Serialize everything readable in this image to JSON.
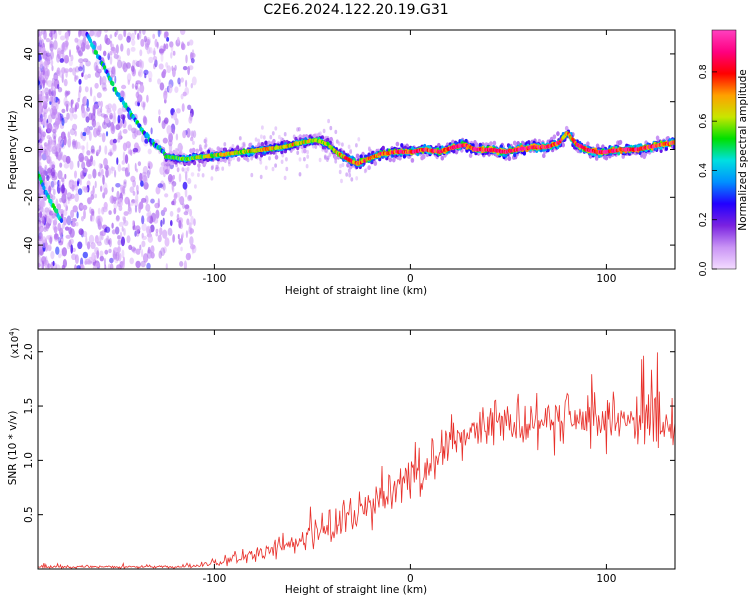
{
  "title": "C2E6.2024.122.20.19.G31",
  "colors": {
    "background": "#ffffff",
    "trace": "#e8302a",
    "frame": "#000000"
  },
  "chart_data": [
    {
      "type": "heatmap",
      "title": "C2E6.2024.122.20.19.G31",
      "xlabel": "Height of straight line (km)",
      "ylabel": "Frequency (Hz)",
      "xlim": [
        -190,
        135
      ],
      "ylim": [
        -50,
        50
      ],
      "x_ticks": [
        -100,
        0,
        100
      ],
      "y_ticks": [
        -40,
        -20,
        0,
        20,
        40
      ],
      "colorbar": {
        "label": "Normalized spectral amplitude",
        "range": [
          0.0,
          0.97
        ],
        "ticks": [
          "0.0",
          "0.2",
          "0.4",
          "0.6",
          "0.8"
        ],
        "colormap": [
          "#f4dcff",
          "#c994f5",
          "#7a22e0",
          "#2200ff",
          "#0090ff",
          "#00e0e0",
          "#00e000",
          "#c8e600",
          "#ffa000",
          "#ff0000",
          "#ff0080",
          "#ff40c0"
        ]
      },
      "ridge": {
        "x": [
          -125,
          -115,
          -105,
          -95,
          -85,
          -75,
          -65,
          -55,
          -48,
          -42,
          -38,
          -32,
          -27,
          -22,
          -15,
          -8,
          0,
          8,
          15,
          22,
          28,
          33,
          40,
          48,
          55,
          62,
          70,
          76,
          80,
          85,
          90,
          95,
          100,
          108,
          115,
          122,
          128,
          135
        ],
        "y": [
          -3,
          -4,
          -3,
          -2,
          -1,
          0,
          1,
          3,
          4,
          2,
          -1,
          -4,
          -6,
          -4,
          -2,
          -1,
          -1,
          0,
          -1,
          1,
          2,
          0,
          0,
          -1,
          0,
          1,
          1,
          3,
          7,
          2,
          0,
          -1,
          -1,
          0,
          0,
          1,
          2,
          3
        ],
        "amplitude": [
          0.5,
          0.55,
          0.6,
          0.65,
          0.65,
          0.7,
          0.68,
          0.65,
          0.6,
          0.6,
          0.7,
          0.75,
          0.8,
          0.75,
          0.78,
          0.8,
          0.85,
          0.85,
          0.86,
          0.88,
          0.85,
          0.9,
          0.9,
          0.9,
          0.9,
          0.9,
          0.88,
          0.85,
          0.7,
          0.85,
          0.9,
          0.9,
          0.9,
          0.9,
          0.9,
          0.88,
          0.85,
          0.8
        ]
      },
      "diagonal_tracks": [
        {
          "x": [
            -165,
            -160,
            -155,
            -150,
            -145,
            -140,
            -135,
            -130,
            -125
          ],
          "y": [
            48,
            40,
            32,
            24,
            18,
            12,
            6,
            2,
            -2
          ],
          "amplitude": 0.5
        },
        {
          "x": [
            -190,
            -186,
            -182,
            -178
          ],
          "y": [
            -10,
            -18,
            -24,
            -30
          ],
          "amplitude": 0.55
        }
      ]
    },
    {
      "type": "line",
      "xlabel": "Height of straight line (km)",
      "ylabel": "SNR (10 * v/v)",
      "y_multiplier": "(x10",
      "y_multiplier_exp": "4",
      "xlim": [
        -190,
        135
      ],
      "ylim": [
        0,
        2.2
      ],
      "x_ticks": [
        -100,
        0,
        100
      ],
      "y_ticks": [
        "0.5",
        "1.0",
        "1.5",
        "2.0"
      ],
      "series": [
        {
          "x": [
            -190,
            -170,
            -150,
            -130,
            -120,
            -110,
            -100,
            -90,
            -80,
            -70,
            -60,
            -50,
            -40,
            -30,
            -20,
            -10,
            0,
            10,
            20,
            30,
            40,
            50,
            60,
            70,
            80,
            90,
            100,
            110,
            120,
            135
          ],
          "mean": [
            0.02,
            0.02,
            0.02,
            0.02,
            0.02,
            0.03,
            0.05,
            0.09,
            0.14,
            0.19,
            0.24,
            0.3,
            0.38,
            0.48,
            0.6,
            0.72,
            0.85,
            1.0,
            1.15,
            1.28,
            1.35,
            1.38,
            1.38,
            1.37,
            1.37,
            1.37,
            1.36,
            1.35,
            1.35,
            1.35
          ],
          "spread": [
            0.03,
            0.03,
            0.03,
            0.03,
            0.03,
            0.05,
            0.08,
            0.12,
            0.16,
            0.2,
            0.25,
            0.3,
            0.35,
            0.4,
            0.45,
            0.5,
            0.5,
            0.5,
            0.5,
            0.5,
            0.5,
            0.5,
            0.55,
            0.55,
            0.55,
            0.55,
            0.55,
            0.55,
            0.55,
            0.55
          ]
        }
      ]
    }
  ]
}
